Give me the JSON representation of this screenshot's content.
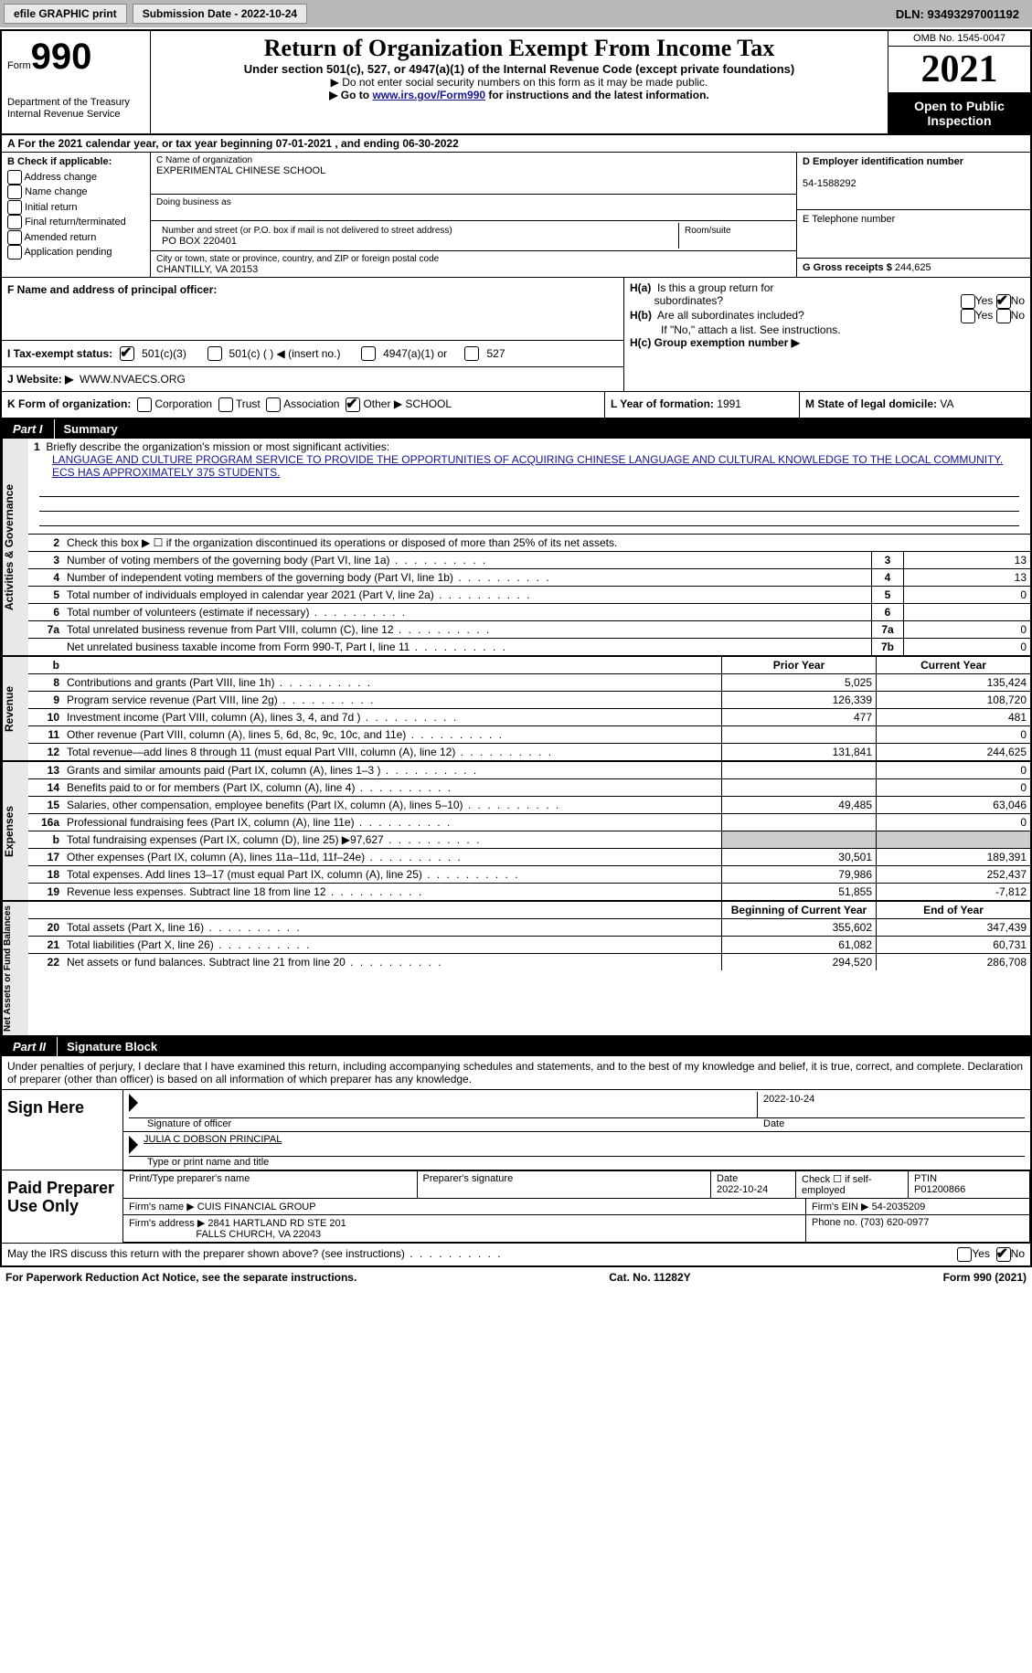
{
  "toolbar": {
    "efile_btn": "efile GRAPHIC print",
    "submission_date": "Submission Date - 2022-10-24",
    "dln": "DLN: 93493297001192"
  },
  "header": {
    "form_prefix": "Form",
    "form_number": "990",
    "dept": "Department of the Treasury",
    "irs": "Internal Revenue Service",
    "title": "Return of Organization Exempt From Income Tax",
    "subtitle": "Under section 501(c), 527, or 4947(a)(1) of the Internal Revenue Code (except private foundations)",
    "note1": "▶ Do not enter social security numbers on this form as it may be made public.",
    "note2_pre": "▶ Go to ",
    "note2_link": "www.irs.gov/Form990",
    "note2_post": " for instructions and the latest information.",
    "omb": "OMB No. 1545-0047",
    "year": "2021",
    "open_public": "Open to Public Inspection"
  },
  "row_a": "A For the 2021 calendar year, or tax year beginning 07-01-2021   , and ending 06-30-2022",
  "col_b": {
    "title": "B Check if applicable:",
    "items": [
      "Address change",
      "Name change",
      "Initial return",
      "Final return/terminated",
      "Amended return",
      "Application pending"
    ]
  },
  "col_c": {
    "name_label": "C Name of organization",
    "name": "EXPERIMENTAL CHINESE SCHOOL",
    "dba_label": "Doing business as",
    "addr_label": "Number and street (or P.O. box if mail is not delivered to street address)",
    "addr": "PO BOX 220401",
    "room_label": "Room/suite",
    "city_label": "City or town, state or province, country, and ZIP or foreign postal code",
    "city": "CHANTILLY, VA  20153"
  },
  "col_de": {
    "d_label": "D Employer identification number",
    "d_val": "54-1588292",
    "e_label": "E Telephone number",
    "g_label": "G Gross receipts $",
    "g_val": "244,625"
  },
  "row_f": {
    "label": "F  Name and address of principal officer:"
  },
  "row_h": {
    "ha_label": "H(a)  Is this a group return for subordinates?",
    "hb_label": "H(b)  Are all subordinates included?",
    "h_note": "If \"No,\" attach a list. See instructions.",
    "hc_label": "H(c)  Group exemption number ▶"
  },
  "row_i": {
    "label": "I   Tax-exempt status:",
    "opts": [
      "501(c)(3)",
      "501(c) (  ) ◀ (insert no.)",
      "4947(a)(1) or",
      "527"
    ]
  },
  "row_j": {
    "label": "J   Website: ▶",
    "val": "WWW.NVAECS.ORG"
  },
  "row_k": {
    "label": "K Form of organization:",
    "opts": [
      "Corporation",
      "Trust",
      "Association",
      "Other ▶"
    ],
    "other_val": "SCHOOL"
  },
  "row_l": {
    "label": "L Year of formation:",
    "val": "1991"
  },
  "row_m": {
    "label": "M State of legal domicile:",
    "val": "VA"
  },
  "part1": {
    "label": "Part I",
    "title": "Summary"
  },
  "side_labels": {
    "a": "Activities & Governance",
    "b": "Revenue",
    "c": "Expenses",
    "d": "Net Assets or Fund Balances"
  },
  "summary": {
    "line1_label": "Briefly describe the organization's mission or most significant activities:",
    "line1_text": "LANGUAGE AND CULTURE PROGRAM SERVICE TO PROVIDE THE OPPORTUNITIES OF ACQUIRING CHINESE LANGUAGE AND CULTURAL KNOWLEDGE TO THE LOCAL COMMUNITY. ECS HAS APPROXIMATELY 375 STUDENTS.",
    "line2": "Check this box ▶ ☐  if the organization discontinued its operations or disposed of more than 25% of its net assets.",
    "lines_small": [
      {
        "n": "3",
        "d": "Number of voting members of the governing body (Part VI, line 1a)",
        "box": "3",
        "v": "13"
      },
      {
        "n": "4",
        "d": "Number of independent voting members of the governing body (Part VI, line 1b)",
        "box": "4",
        "v": "13"
      },
      {
        "n": "5",
        "d": "Total number of individuals employed in calendar year 2021 (Part V, line 2a)",
        "box": "5",
        "v": "0"
      },
      {
        "n": "6",
        "d": "Total number of volunteers (estimate if necessary)",
        "box": "6",
        "v": ""
      },
      {
        "n": "7a",
        "d": "Total unrelated business revenue from Part VIII, column (C), line 12",
        "box": "7a",
        "v": "0"
      },
      {
        "n": "",
        "d": "Net unrelated business taxable income from Form 990-T, Part I, line 11",
        "box": "7b",
        "v": "0"
      }
    ],
    "col_headers": {
      "prior": "Prior Year",
      "current": "Current Year"
    },
    "revenue": [
      {
        "n": "8",
        "d": "Contributions and grants (Part VIII, line 1h)",
        "p": "5,025",
        "c": "135,424"
      },
      {
        "n": "9",
        "d": "Program service revenue (Part VIII, line 2g)",
        "p": "126,339",
        "c": "108,720"
      },
      {
        "n": "10",
        "d": "Investment income (Part VIII, column (A), lines 3, 4, and 7d )",
        "p": "477",
        "c": "481"
      },
      {
        "n": "11",
        "d": "Other revenue (Part VIII, column (A), lines 5, 6d, 8c, 9c, 10c, and 11e)",
        "p": "",
        "c": "0"
      },
      {
        "n": "12",
        "d": "Total revenue—add lines 8 through 11 (must equal Part VIII, column (A), line 12)",
        "p": "131,841",
        "c": "244,625"
      }
    ],
    "expenses": [
      {
        "n": "13",
        "d": "Grants and similar amounts paid (Part IX, column (A), lines 1–3 )",
        "p": "",
        "c": "0"
      },
      {
        "n": "14",
        "d": "Benefits paid to or for members (Part IX, column (A), line 4)",
        "p": "",
        "c": "0"
      },
      {
        "n": "15",
        "d": "Salaries, other compensation, employee benefits (Part IX, column (A), lines 5–10)",
        "p": "49,485",
        "c": "63,046"
      },
      {
        "n": "16a",
        "d": "Professional fundraising fees (Part IX, column (A), line 11e)",
        "p": "",
        "c": "0"
      },
      {
        "n": "b",
        "d": "Total fundraising expenses (Part IX, column (D), line 25) ▶97,627",
        "p": "fill",
        "c": "fill"
      },
      {
        "n": "17",
        "d": "Other expenses (Part IX, column (A), lines 11a–11d, 11f–24e)",
        "p": "30,501",
        "c": "189,391"
      },
      {
        "n": "18",
        "d": "Total expenses. Add lines 13–17 (must equal Part IX, column (A), line 25)",
        "p": "79,986",
        "c": "252,437"
      },
      {
        "n": "19",
        "d": "Revenue less expenses. Subtract line 18 from line 12",
        "p": "51,855",
        "c": "-7,812"
      }
    ],
    "net_headers": {
      "beg": "Beginning of Current Year",
      "end": "End of Year"
    },
    "net": [
      {
        "n": "20",
        "d": "Total assets (Part X, line 16)",
        "p": "355,602",
        "c": "347,439"
      },
      {
        "n": "21",
        "d": "Total liabilities (Part X, line 26)",
        "p": "61,082",
        "c": "60,731"
      },
      {
        "n": "22",
        "d": "Net assets or fund balances. Subtract line 21 from line 20",
        "p": "294,520",
        "c": "286,708"
      }
    ]
  },
  "part2": {
    "label": "Part II",
    "title": "Signature Block"
  },
  "sig": {
    "declare": "Under penalties of perjury, I declare that I have examined this return, including accompanying schedules and statements, and to the best of my knowledge and belief, it is true, correct, and complete. Declaration of preparer (other than officer) is based on all information of which preparer has any knowledge.",
    "sign_here": "Sign Here",
    "sig_officer": "Signature of officer",
    "date_val": "2022-10-24",
    "date_label": "Date",
    "name_title": "JULIA C DOBSON  PRINCIPAL",
    "name_label": "Type or print name and title",
    "paid_prep": "Paid Preparer Use Only",
    "prep_name_label": "Print/Type preparer's name",
    "prep_sig_label": "Preparer's signature",
    "prep_date_label": "Date",
    "prep_date": "2022-10-24",
    "check_self": "Check ☐ if self-employed",
    "ptin_label": "PTIN",
    "ptin": "P01200866",
    "firm_name_label": "Firm's name    ▶",
    "firm_name": "CUIS FINANCIAL GROUP",
    "firm_ein_label": "Firm's EIN ▶",
    "firm_ein": "54-2035209",
    "firm_addr_label": "Firm's address ▶",
    "firm_addr1": "2841 HARTLAND RD STE 201",
    "firm_addr2": "FALLS CHURCH, VA  22043",
    "phone_label": "Phone no.",
    "phone": "(703) 620-0977",
    "may_irs": "May the IRS discuss this return with the preparer shown above? (see instructions)"
  },
  "footer": {
    "left": "For Paperwork Reduction Act Notice, see the separate instructions.",
    "mid": "Cat. No. 11282Y",
    "right": "Form 990 (2021)"
  }
}
